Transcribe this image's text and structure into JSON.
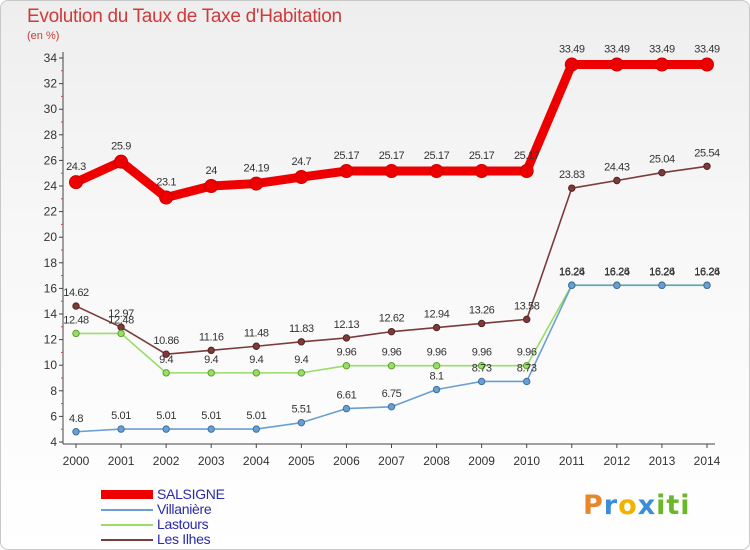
{
  "title": "Evolution du Taux de Taxe d'Habitation",
  "unit": "(en %)",
  "logo": "Proxiti",
  "chart_data": {
    "type": "line",
    "title": "Evolution du Taux de Taxe d'Habitation",
    "ylabel": "(en %)",
    "xlabel": "",
    "ylim": [
      4,
      34
    ],
    "yticks": [
      4,
      6,
      8,
      10,
      12,
      14,
      16,
      18,
      20,
      22,
      24,
      26,
      28,
      30,
      32,
      34
    ],
    "grid": false,
    "legend_position": "bottom-left",
    "x": [
      "2000",
      "2001",
      "2002",
      "2003",
      "2004",
      "2005",
      "2006",
      "2007",
      "2008",
      "2009",
      "2010",
      "2011",
      "2012",
      "2013",
      "2014"
    ],
    "series": [
      {
        "name": "SALSIGNE",
        "color": "#ee0000",
        "values": [
          24.3,
          25.9,
          23.1,
          24,
          24.19,
          24.7,
          25.17,
          25.17,
          25.17,
          25.17,
          25.17,
          33.49,
          33.49,
          33.49,
          33.49
        ],
        "labels": [
          "24.3",
          "25.9",
          "23.1",
          "24",
          "24.19",
          "24.7",
          "25.17",
          "25.17",
          "25.17",
          "25.17",
          "25.17",
          "33.49",
          "33.49",
          "33.49",
          "33.49"
        ]
      },
      {
        "name": "Villanière",
        "color": "#6a9fd4",
        "values": [
          4.8,
          5.01,
          5.01,
          5.01,
          5.01,
          5.51,
          6.61,
          6.75,
          8.1,
          8.73,
          8.73,
          16.24,
          16.24,
          16.24,
          16.24
        ],
        "labels": [
          "4.8",
          "5.01",
          "5.01",
          "5.01",
          "5.01",
          "5.51",
          "6.61",
          "6.75",
          "8.1",
          "8.73",
          "8.73",
          "16.24",
          "16.24",
          "16.24",
          "16.24"
        ]
      },
      {
        "name": "Lastours",
        "color": "#99dd66",
        "values": [
          12.48,
          12.48,
          9.4,
          9.4,
          9.4,
          9.4,
          9.96,
          9.96,
          9.96,
          9.96,
          9.96,
          16.26,
          16.26,
          16.26,
          16.26
        ],
        "labels": [
          "12.48",
          "12.48",
          "9.4",
          "9.4",
          "9.4",
          "9.4",
          "9.96",
          "9.96",
          "9.96",
          "9.96",
          "9.96",
          "16.26",
          "16.26",
          "16.26",
          "16.26"
        ]
      },
      {
        "name": "Les Ilhes",
        "color": "#7a3b3b",
        "values": [
          14.62,
          12.97,
          10.86,
          11.16,
          11.48,
          11.83,
          12.13,
          12.62,
          12.94,
          13.26,
          13.58,
          23.83,
          24.43,
          25.04,
          25.54
        ],
        "labels": [
          "14.62",
          "12.97",
          "10.86",
          "11.16",
          "11.48",
          "11.83",
          "12.13",
          "12.62",
          "12.94",
          "13.26",
          "13.58",
          "23.83",
          "24.43",
          "25.04",
          "25.54"
        ]
      }
    ]
  }
}
